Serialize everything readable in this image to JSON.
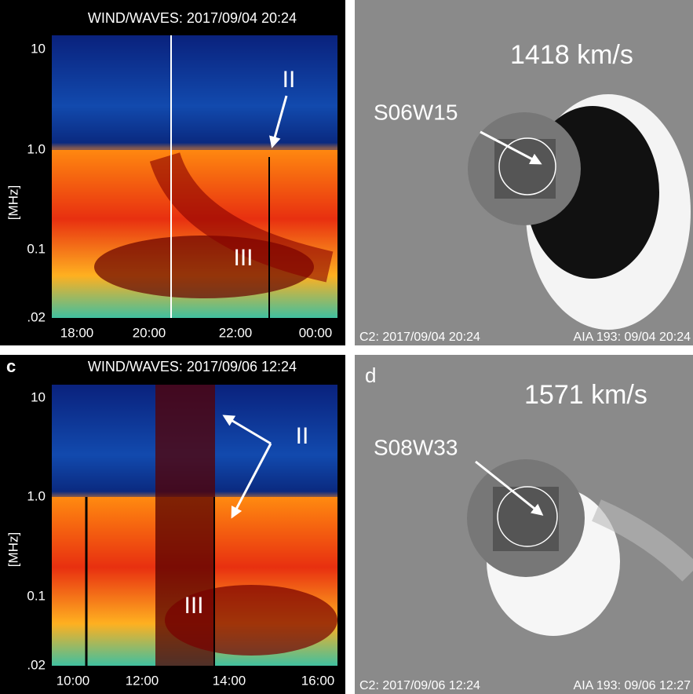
{
  "panels": [
    {
      "title": "WIND/WAVES: 2017/09/04 20:24",
      "y_axis_label": "[MHz]",
      "y_ticks": [
        "10",
        "1.0",
        "0.1",
        ".02"
      ],
      "x_ticks": [
        "18:00",
        "20:00",
        "22:00",
        "00:00"
      ],
      "annotations": [
        "II",
        "III"
      ]
    },
    {
      "speed": "1418 km/s",
      "location": "S06W15",
      "c2_caption": "C2: 2017/09/04 20:24",
      "aia_caption": "AIA 193: 09/04 20:24"
    },
    {
      "label": "c",
      "title": "WIND/WAVES: 2017/09/06 12:24",
      "y_axis_label": "[MHz]",
      "y_ticks": [
        "10",
        "1.0",
        "0.1",
        ".02"
      ],
      "x_ticks": [
        "10:00",
        "12:00",
        "14:00",
        "16:00"
      ],
      "annotations": [
        "II",
        "III"
      ]
    },
    {
      "label": "d",
      "speed": "1571 km/s",
      "location": "S08W33",
      "c2_caption": "C2: 2017/09/06 12:24",
      "aia_caption": "AIA 193: 09/06 12:27"
    }
  ]
}
